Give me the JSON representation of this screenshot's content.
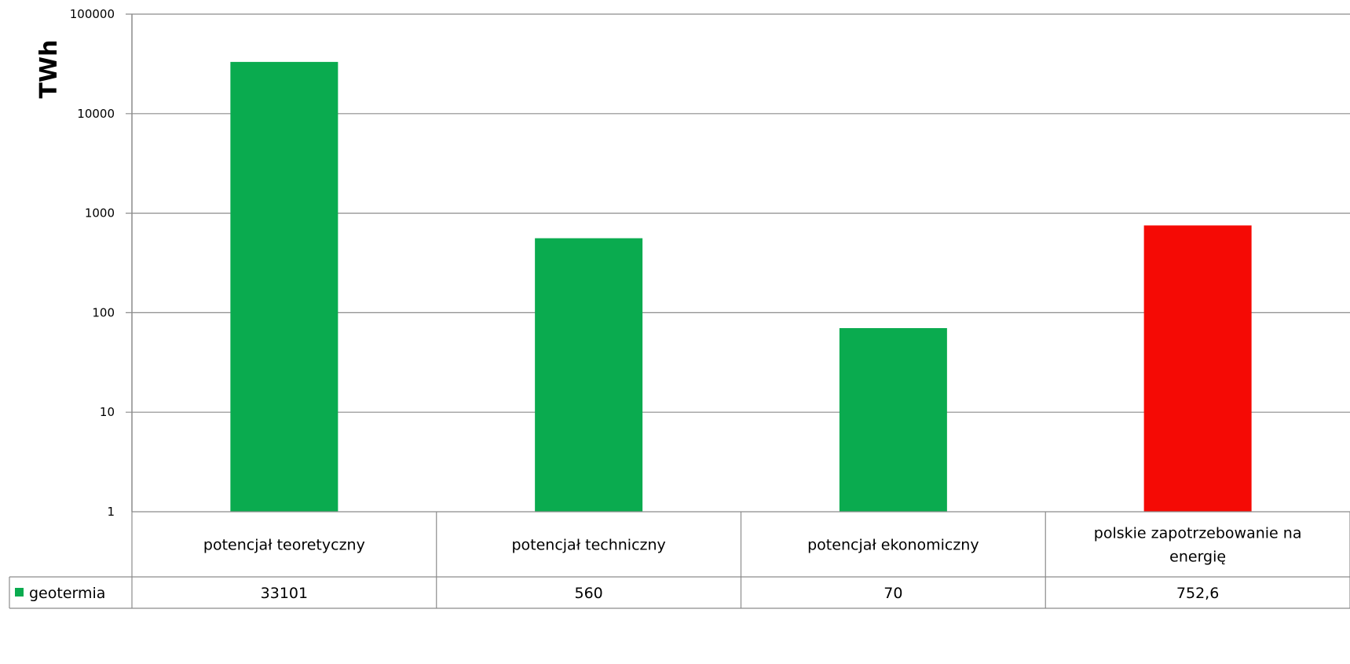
{
  "chart_data": {
    "type": "bar",
    "ylabel": "TWh",
    "yscale": "log",
    "ylim": [
      1,
      100000
    ],
    "yticks": [
      "1",
      "10",
      "100",
      "1000",
      "10000",
      "100000"
    ],
    "grid": true,
    "categories": [
      [
        "potencjał teoretyczny"
      ],
      [
        "potencjał techniczny"
      ],
      [
        "potencjał ekonomiczny"
      ],
      [
        "polskie zapotrzebowanie na",
        "energię"
      ]
    ],
    "series": [
      {
        "name": "geotermia",
        "values": [
          33101,
          560,
          70,
          752.6
        ],
        "value_labels": [
          "33101",
          "560",
          "70",
          "752,6"
        ],
        "colors": [
          "#0aab4f",
          "#0aab4f",
          "#0aab4f",
          "#f50a05"
        ]
      }
    ],
    "legend": "data-table-row",
    "legend_color": "#0aab4f"
  }
}
